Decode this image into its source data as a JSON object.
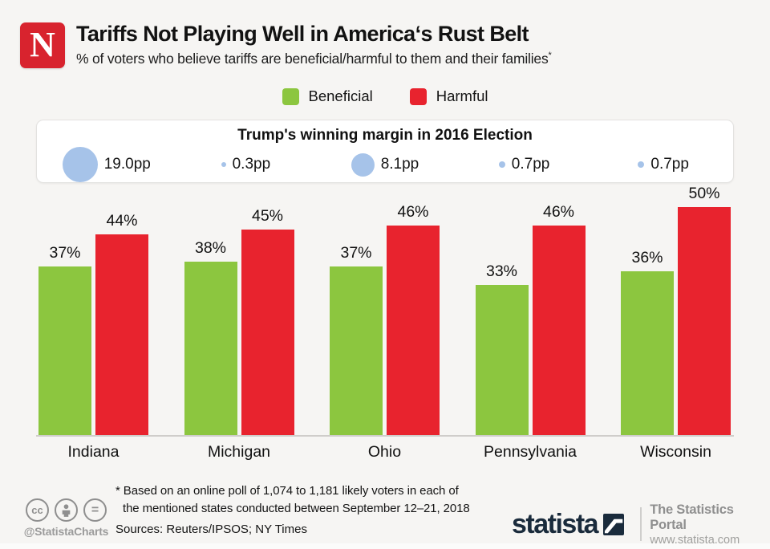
{
  "header": {
    "logo_letter": "N",
    "title": "Tariffs Not Playing Well in America‘s Rust Belt",
    "subtitle": "% of voters who believe tariffs are beneficial/harmful to them and their families",
    "footnote_marker": "*"
  },
  "legend": [
    {
      "label": "Beneficial",
      "color": "#8cc63f"
    },
    {
      "label": "Harmful",
      "color": "#e8232e"
    }
  ],
  "bubble_panel": {
    "title": "Trump's winning margin in 2016 Election",
    "bubble_color": "#a6c3e9",
    "unit": "pp"
  },
  "chart_data": {
    "type": "bar",
    "title": "Tariffs Not Playing Well in America's Rust Belt",
    "categories": [
      "Indiana",
      "Michigan",
      "Ohio",
      "Pennsylvania",
      "Wisconsin"
    ],
    "series": [
      {
        "name": "Beneficial",
        "color": "#8cc63f",
        "values": [
          37,
          38,
          37,
          33,
          36
        ]
      },
      {
        "name": "Harmful",
        "color": "#e8232e",
        "values": [
          44,
          45,
          46,
          46,
          50
        ]
      }
    ],
    "value_suffix": "%",
    "ylim": [
      0,
      52
    ],
    "grid": false,
    "legend_position": "top",
    "bubble_series": {
      "name": "Trump's winning margin in 2016 Election",
      "values": [
        19.0,
        0.3,
        8.1,
        0.7,
        0.7
      ],
      "unit": "pp",
      "labels": [
        "19.0pp",
        "0.3pp",
        "8.1pp",
        "0.7pp",
        "0.7pp"
      ]
    }
  },
  "footer": {
    "cc_label": "cc",
    "cc_eq": "=",
    "handle": "@StatistaCharts",
    "footnote_line1": "* Based on an online poll of 1,074 to 1,181 likely voters in each of",
    "footnote_line2": "the mentioned states conducted between September 12–21, 2018",
    "sources": "Sources: Reuters/IPSOS; NY Times",
    "statista_wordmark": "statista",
    "portal_line1": "The Statistics Portal",
    "portal_line2": "www.statista.com"
  }
}
